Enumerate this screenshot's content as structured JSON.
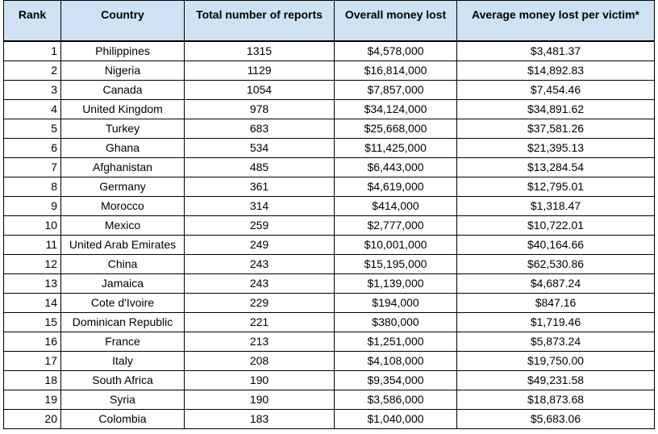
{
  "table": {
    "headers": [
      "Rank",
      "Country",
      "Total number of reports",
      "Overall money lost",
      "Average money lost per victim*"
    ],
    "rows": [
      [
        "1",
        "Philippines",
        "1315",
        "$4,578,000",
        "$3,481.37"
      ],
      [
        "2",
        "Nigeria",
        "1129",
        "$16,814,000",
        "$14,892.83"
      ],
      [
        "3",
        "Canada",
        "1054",
        "$7,857,000",
        "$7,454.46"
      ],
      [
        "4",
        "United Kingdom",
        "978",
        "$34,124,000",
        "$34,891.62"
      ],
      [
        "5",
        "Turkey",
        "683",
        "$25,668,000",
        "$37,581.26"
      ],
      [
        "6",
        "Ghana",
        "534",
        "$11,425,000",
        "$21,395.13"
      ],
      [
        "7",
        "Afghanistan",
        "485",
        "$6,443,000",
        "$13,284.54"
      ],
      [
        "8",
        "Germany",
        "361",
        "$4,619,000",
        "$12,795.01"
      ],
      [
        "9",
        "Morocco",
        "314",
        "$414,000",
        "$1,318.47"
      ],
      [
        "10",
        "Mexico",
        "259",
        "$2,777,000",
        "$10,722.01"
      ],
      [
        "11",
        "United Arab Emirates",
        "249",
        "$10,001,000",
        "$40,164.66"
      ],
      [
        "12",
        "China",
        "243",
        "$15,195,000",
        "$62,530.86"
      ],
      [
        "13",
        "Jamaica",
        "243",
        "$1,139,000",
        "$4,687.24"
      ],
      [
        "14",
        "Cote d'Ivoire",
        "229",
        "$194,000",
        "$847.16"
      ],
      [
        "15",
        "Dominican Republic",
        "221",
        "$380,000",
        "$1,719.46"
      ],
      [
        "16",
        "France",
        "213",
        "$1,251,000",
        "$5,873.24"
      ],
      [
        "17",
        "Italy",
        "208",
        "$4,108,000",
        "$19,750.00"
      ],
      [
        "18",
        "South Africa",
        "190",
        "$9,354,000",
        "$49,231.58"
      ],
      [
        "19",
        "Syria",
        "190",
        "$3,586,000",
        "$18,873.68"
      ],
      [
        "20",
        "Colombia",
        "183",
        "$1,040,000",
        "$5,683.06"
      ]
    ]
  },
  "colors": {
    "header_background": "#cfe2f3",
    "border": "#000000"
  }
}
